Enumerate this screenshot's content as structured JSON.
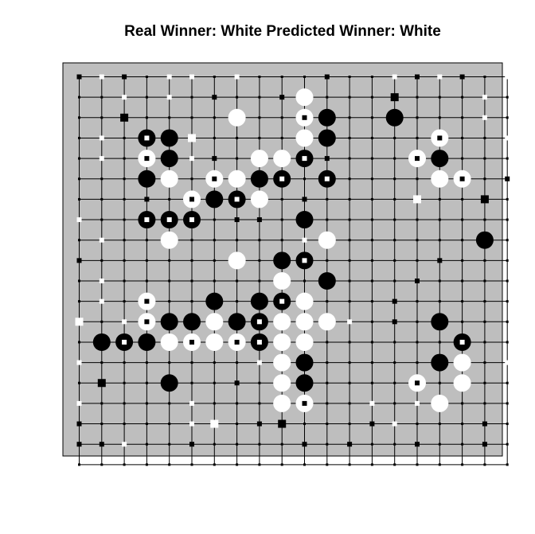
{
  "title": "Real Winner: White Predicted Winner: White",
  "colors": {
    "board": "#bebebe",
    "grid": "#000000",
    "black": "#000000",
    "white": "#ffffff"
  },
  "chart_data": {
    "type": "scatter",
    "title": "Real Winner: White Predicted Winner: White",
    "board_size": 19,
    "grid": true,
    "stones": [
      {
        "col": 4,
        "row": 3,
        "color": "black"
      },
      {
        "col": 7,
        "row": 2,
        "color": "white"
      },
      {
        "col": 10,
        "row": 1,
        "color": "white"
      },
      {
        "col": 10,
        "row": 2,
        "color": "white",
        "marker": "black"
      },
      {
        "col": 11,
        "row": 2,
        "color": "black"
      },
      {
        "col": 14,
        "row": 2,
        "color": "black"
      },
      {
        "col": 3,
        "row": 3,
        "color": "black",
        "marker": "white"
      },
      {
        "col": 10,
        "row": 3,
        "color": "white"
      },
      {
        "col": 11,
        "row": 3,
        "color": "black"
      },
      {
        "col": 16,
        "row": 3,
        "color": "white",
        "marker": "black"
      },
      {
        "col": 3,
        "row": 4,
        "color": "white",
        "marker": "black"
      },
      {
        "col": 4,
        "row": 4,
        "color": "black"
      },
      {
        "col": 8,
        "row": 4,
        "color": "white"
      },
      {
        "col": 9,
        "row": 4,
        "color": "white"
      },
      {
        "col": 10,
        "row": 4,
        "color": "black",
        "marker": "white"
      },
      {
        "col": 15,
        "row": 4,
        "color": "white",
        "marker": "black"
      },
      {
        "col": 16,
        "row": 4,
        "color": "black"
      },
      {
        "col": 3,
        "row": 5,
        "color": "black"
      },
      {
        "col": 4,
        "row": 5,
        "color": "white"
      },
      {
        "col": 6,
        "row": 5,
        "color": "white",
        "marker": "black"
      },
      {
        "col": 7,
        "row": 5,
        "color": "white"
      },
      {
        "col": 8,
        "row": 5,
        "color": "black"
      },
      {
        "col": 9,
        "row": 5,
        "color": "black",
        "marker": "white"
      },
      {
        "col": 11,
        "row": 5,
        "color": "black",
        "marker": "white"
      },
      {
        "col": 16,
        "row": 5,
        "color": "white"
      },
      {
        "col": 17,
        "row": 5,
        "color": "white",
        "marker": "black"
      },
      {
        "col": 5,
        "row": 6,
        "color": "white",
        "marker": "black"
      },
      {
        "col": 6,
        "row": 6,
        "color": "black"
      },
      {
        "col": 7,
        "row": 6,
        "color": "black",
        "marker": "white"
      },
      {
        "col": 8,
        "row": 6,
        "color": "white"
      },
      {
        "col": 3,
        "row": 7,
        "color": "black",
        "marker": "white"
      },
      {
        "col": 4,
        "row": 7,
        "color": "black",
        "marker": "white"
      },
      {
        "col": 5,
        "row": 7,
        "color": "black",
        "marker": "white"
      },
      {
        "col": 10,
        "row": 7,
        "color": "black"
      },
      {
        "col": 4,
        "row": 8,
        "color": "white"
      },
      {
        "col": 11,
        "row": 8,
        "color": "white"
      },
      {
        "col": 18,
        "row": 8,
        "color": "black"
      },
      {
        "col": 7,
        "row": 9,
        "color": "white"
      },
      {
        "col": 9,
        "row": 9,
        "color": "black"
      },
      {
        "col": 10,
        "row": 9,
        "color": "black",
        "marker": "white"
      },
      {
        "col": 9,
        "row": 10,
        "color": "white"
      },
      {
        "col": 11,
        "row": 10,
        "color": "black"
      },
      {
        "col": 3,
        "row": 11,
        "color": "white",
        "marker": "black"
      },
      {
        "col": 6,
        "row": 11,
        "color": "black"
      },
      {
        "col": 8,
        "row": 11,
        "color": "black"
      },
      {
        "col": 9,
        "row": 11,
        "color": "black",
        "marker": "white"
      },
      {
        "col": 10,
        "row": 11,
        "color": "white"
      },
      {
        "col": 3,
        "row": 12,
        "color": "white",
        "marker": "black"
      },
      {
        "col": 4,
        "row": 12,
        "color": "black"
      },
      {
        "col": 5,
        "row": 12,
        "color": "black"
      },
      {
        "col": 6,
        "row": 12,
        "color": "white"
      },
      {
        "col": 7,
        "row": 12,
        "color": "black"
      },
      {
        "col": 8,
        "row": 12,
        "color": "black",
        "marker": "white"
      },
      {
        "col": 9,
        "row": 12,
        "color": "white"
      },
      {
        "col": 10,
        "row": 12,
        "color": "white"
      },
      {
        "col": 11,
        "row": 12,
        "color": "white"
      },
      {
        "col": 16,
        "row": 12,
        "color": "black"
      },
      {
        "col": 1,
        "row": 13,
        "color": "black"
      },
      {
        "col": 2,
        "row": 13,
        "color": "black",
        "marker": "white"
      },
      {
        "col": 3,
        "row": 13,
        "color": "black"
      },
      {
        "col": 4,
        "row": 13,
        "color": "white"
      },
      {
        "col": 5,
        "row": 13,
        "color": "white",
        "marker": "black"
      },
      {
        "col": 6,
        "row": 13,
        "color": "white"
      },
      {
        "col": 7,
        "row": 13,
        "color": "white",
        "marker": "black"
      },
      {
        "col": 8,
        "row": 13,
        "color": "black",
        "marker": "white"
      },
      {
        "col": 9,
        "row": 13,
        "color": "white"
      },
      {
        "col": 10,
        "row": 13,
        "color": "white"
      },
      {
        "col": 17,
        "row": 13,
        "color": "black",
        "marker": "white"
      },
      {
        "col": 9,
        "row": 14,
        "color": "white"
      },
      {
        "col": 10,
        "row": 14,
        "color": "black"
      },
      {
        "col": 16,
        "row": 14,
        "color": "black"
      },
      {
        "col": 17,
        "row": 14,
        "color": "white"
      },
      {
        "col": 4,
        "row": 15,
        "color": "black"
      },
      {
        "col": 9,
        "row": 15,
        "color": "white"
      },
      {
        "col": 10,
        "row": 15,
        "color": "black"
      },
      {
        "col": 15,
        "row": 15,
        "color": "white",
        "marker": "black"
      },
      {
        "col": 17,
        "row": 15,
        "color": "white"
      },
      {
        "col": 9,
        "row": 16,
        "color": "white"
      },
      {
        "col": 10,
        "row": 16,
        "color": "white",
        "marker": "black"
      },
      {
        "col": 16,
        "row": 16,
        "color": "white"
      }
    ],
    "squares": [
      {
        "col": 0,
        "row": 0,
        "color": "black"
      },
      {
        "col": 1,
        "row": 0,
        "color": "white"
      },
      {
        "col": 2,
        "row": 0,
        "color": "black"
      },
      {
        "col": 4,
        "row": 0,
        "color": "white"
      },
      {
        "col": 5,
        "row": 0,
        "color": "white"
      },
      {
        "col": 7,
        "row": 0,
        "color": "white"
      },
      {
        "col": 11,
        "row": 0,
        "color": "black"
      },
      {
        "col": 14,
        "row": 0,
        "color": "white"
      },
      {
        "col": 15,
        "row": 0,
        "color": "black"
      },
      {
        "col": 16,
        "row": 0,
        "color": "white"
      },
      {
        "col": 17,
        "row": 0,
        "color": "black"
      },
      {
        "col": 19,
        "row": 0,
        "color": "white"
      },
      {
        "col": 2,
        "row": 1,
        "color": "white"
      },
      {
        "col": 4,
        "row": 1,
        "color": "white"
      },
      {
        "col": 6,
        "row": 1,
        "color": "black"
      },
      {
        "col": 9,
        "row": 1,
        "color": "black"
      },
      {
        "col": 14,
        "row": 1,
        "color": "black",
        "size": "large"
      },
      {
        "col": 18,
        "row": 1,
        "color": "white"
      },
      {
        "col": 2,
        "row": 2,
        "color": "black",
        "size": "large"
      },
      {
        "col": 7,
        "row": 2,
        "color": "black"
      },
      {
        "col": 18,
        "row": 2,
        "color": "white"
      },
      {
        "col": 1,
        "row": 3,
        "color": "white"
      },
      {
        "col": 5,
        "row": 3,
        "color": "white",
        "size": "large"
      },
      {
        "col": 19,
        "row": 3,
        "color": "white"
      },
      {
        "col": 1,
        "row": 4,
        "color": "white"
      },
      {
        "col": 5,
        "row": 4,
        "color": "white"
      },
      {
        "col": 6,
        "row": 4,
        "color": "black"
      },
      {
        "col": 11,
        "row": 4,
        "color": "black"
      },
      {
        "col": 19,
        "row": 5,
        "color": "black"
      },
      {
        "col": 3,
        "row": 6,
        "color": "black"
      },
      {
        "col": 10,
        "row": 6,
        "color": "black"
      },
      {
        "col": 15,
        "row": 6,
        "color": "white",
        "size": "large"
      },
      {
        "col": 18,
        "row": 6,
        "color": "black",
        "size": "large"
      },
      {
        "col": 0,
        "row": 7,
        "color": "white"
      },
      {
        "col": 7,
        "row": 7,
        "color": "black"
      },
      {
        "col": 8,
        "row": 7,
        "color": "black"
      },
      {
        "col": 1,
        "row": 8,
        "color": "white"
      },
      {
        "col": 10,
        "row": 8,
        "color": "white"
      },
      {
        "col": 0,
        "row": 9,
        "color": "black"
      },
      {
        "col": 16,
        "row": 9,
        "color": "black"
      },
      {
        "col": 1,
        "row": 10,
        "color": "white"
      },
      {
        "col": 15,
        "row": 10,
        "color": "black"
      },
      {
        "col": 1,
        "row": 11,
        "color": "white"
      },
      {
        "col": 14,
        "row": 11,
        "color": "black"
      },
      {
        "col": 0,
        "row": 12,
        "color": "white",
        "size": "large"
      },
      {
        "col": 2,
        "row": 12,
        "color": "white"
      },
      {
        "col": 12,
        "row": 12,
        "color": "white"
      },
      {
        "col": 14,
        "row": 12,
        "color": "black"
      },
      {
        "col": 0,
        "row": 14,
        "color": "white"
      },
      {
        "col": 8,
        "row": 14,
        "color": "white"
      },
      {
        "col": 19,
        "row": 14,
        "color": "white"
      },
      {
        "col": 1,
        "row": 15,
        "color": "black",
        "size": "large"
      },
      {
        "col": 7,
        "row": 15,
        "color": "black"
      },
      {
        "col": 0,
        "row": 16,
        "color": "white"
      },
      {
        "col": 5,
        "row": 16,
        "color": "white"
      },
      {
        "col": 13,
        "row": 16,
        "color": "white"
      },
      {
        "col": 15,
        "row": 16,
        "color": "white"
      },
      {
        "col": 0,
        "row": 17,
        "color": "black"
      },
      {
        "col": 5,
        "row": 17,
        "color": "white"
      },
      {
        "col": 6,
        "row": 17,
        "color": "white",
        "size": "large"
      },
      {
        "col": 8,
        "row": 17,
        "color": "black"
      },
      {
        "col": 9,
        "row": 17,
        "color": "black",
        "size": "large"
      },
      {
        "col": 13,
        "row": 17,
        "color": "black"
      },
      {
        "col": 14,
        "row": 17,
        "color": "white"
      },
      {
        "col": 18,
        "row": 17,
        "color": "black"
      },
      {
        "col": 0,
        "row": 18,
        "color": "black"
      },
      {
        "col": 1,
        "row": 18,
        "color": "black"
      },
      {
        "col": 2,
        "row": 18,
        "color": "white"
      },
      {
        "col": 5,
        "row": 18,
        "color": "black"
      },
      {
        "col": 10,
        "row": 18,
        "color": "black"
      },
      {
        "col": 12,
        "row": 18,
        "color": "black"
      },
      {
        "col": 15,
        "row": 18,
        "color": "black"
      },
      {
        "col": 18,
        "row": 18,
        "color": "black"
      }
    ]
  }
}
